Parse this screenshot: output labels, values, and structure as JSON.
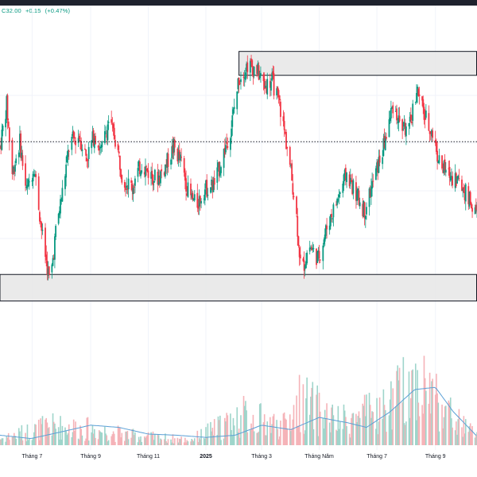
{
  "header": {
    "last_price": "C32.00",
    "change": "+0.15",
    "change_pct": "(+0.47%)"
  },
  "colors": {
    "up": "#089981",
    "down": "#f23645",
    "up_volume": "#9fd5cb",
    "down_volume": "#f5b3b8",
    "volume_ma": "#5a9fd6",
    "zone_fill": "#e6e6e6",
    "zone_stroke": "#131722",
    "grid": "#f0f3fa",
    "dotted_line": "#131722"
  },
  "chart_data": {
    "type": "candlestick",
    "x_ticks": [
      "Tháng 7",
      "Tháng 9",
      "Tháng 11",
      "2025",
      "Tháng 3",
      "Tháng Năm",
      "Tháng 7",
      "Tháng 9"
    ],
    "x_range": [
      "2024-05-28",
      "2025-10-15"
    ],
    "price_range": [
      0,
      100
    ],
    "volume_range": [
      0,
      100
    ],
    "annotations": {
      "resistance_zone": {
        "x_start": "2025-02-05",
        "x_end": "2025-10-15",
        "y_low": 89,
        "y_high": 98
      },
      "support_zone": {
        "x_start": "2024-05-28",
        "x_end": "2025-10-15",
        "y_low": 4,
        "y_high": 14
      },
      "horizontal_line": {
        "y": 64,
        "style": "dotted"
      }
    },
    "price_path": [
      [
        "2024-05-28",
        62
      ],
      [
        "2024-06-04",
        78
      ],
      [
        "2024-06-10",
        52
      ],
      [
        "2024-06-18",
        64
      ],
      [
        "2024-06-25",
        45
      ],
      [
        "2024-07-03",
        55
      ],
      [
        "2024-07-12",
        28
      ],
      [
        "2024-07-20",
        10
      ],
      [
        "2024-07-26",
        30
      ],
      [
        "2024-08-02",
        45
      ],
      [
        "2024-08-10",
        64
      ],
      [
        "2024-08-20",
        66
      ],
      [
        "2024-08-28",
        58
      ],
      [
        "2024-09-05",
        67
      ],
      [
        "2024-09-12",
        60
      ],
      [
        "2024-09-20",
        72
      ],
      [
        "2024-09-28",
        64
      ],
      [
        "2024-10-05",
        50
      ],
      [
        "2024-10-15",
        47
      ],
      [
        "2024-10-25",
        56
      ],
      [
        "2024-11-02",
        52
      ],
      [
        "2024-11-10",
        50
      ],
      [
        "2024-11-18",
        54
      ],
      [
        "2024-11-28",
        62
      ],
      [
        "2024-12-06",
        56
      ],
      [
        "2024-12-14",
        44
      ],
      [
        "2024-12-22",
        40
      ],
      [
        "2024-12-30",
        46
      ],
      [
        "2025-01-10",
        48
      ],
      [
        "2025-01-20",
        60
      ],
      [
        "2025-01-28",
        70
      ],
      [
        "2025-02-05",
        88
      ],
      [
        "2025-02-14",
        93
      ],
      [
        "2025-02-24",
        91
      ],
      [
        "2025-03-04",
        85
      ],
      [
        "2025-03-12",
        87
      ],
      [
        "2025-03-20",
        78
      ],
      [
        "2025-03-28",
        62
      ],
      [
        "2025-04-06",
        40
      ],
      [
        "2025-04-12",
        14
      ],
      [
        "2025-04-20",
        25
      ],
      [
        "2025-04-30",
        20
      ],
      [
        "2025-05-10",
        33
      ],
      [
        "2025-05-20",
        42
      ],
      [
        "2025-05-30",
        52
      ],
      [
        "2025-06-08",
        45
      ],
      [
        "2025-06-18",
        38
      ],
      [
        "2025-06-28",
        50
      ],
      [
        "2025-07-08",
        62
      ],
      [
        "2025-07-18",
        78
      ],
      [
        "2025-07-26",
        70
      ],
      [
        "2025-08-04",
        68
      ],
      [
        "2025-08-12",
        84
      ],
      [
        "2025-08-20",
        74
      ],
      [
        "2025-08-28",
        68
      ],
      [
        "2025-09-06",
        55
      ],
      [
        "2025-09-14",
        52
      ],
      [
        "2025-09-24",
        50
      ],
      [
        "2025-10-04",
        44
      ],
      [
        "2025-10-15",
        36
      ]
    ],
    "volume_ma_path": [
      [
        "2024-05-28",
        9
      ],
      [
        "2024-06-30",
        6
      ],
      [
        "2024-08-01",
        12
      ],
      [
        "2024-09-01",
        18
      ],
      [
        "2024-10-01",
        16
      ],
      [
        "2024-11-01",
        10
      ],
      [
        "2024-12-01",
        9
      ],
      [
        "2025-01-01",
        7
      ],
      [
        "2025-02-01",
        9
      ],
      [
        "2025-03-01",
        18
      ],
      [
        "2025-04-01",
        14
      ],
      [
        "2025-05-01",
        25
      ],
      [
        "2025-06-01",
        20
      ],
      [
        "2025-06-20",
        16
      ],
      [
        "2025-07-15",
        30
      ],
      [
        "2025-08-10",
        50
      ],
      [
        "2025-09-01",
        52
      ],
      [
        "2025-09-20",
        30
      ],
      [
        "2025-10-15",
        8
      ]
    ],
    "volume_peaks": [
      [
        "2024-05-28",
        10
      ],
      [
        "2024-07-20",
        30
      ],
      [
        "2024-09-01",
        25
      ],
      [
        "2024-10-15",
        15
      ],
      [
        "2024-12-15",
        8
      ],
      [
        "2025-02-10",
        45
      ],
      [
        "2025-03-25",
        30
      ],
      [
        "2025-04-12",
        70
      ],
      [
        "2025-05-20",
        35
      ],
      [
        "2025-07-10",
        55
      ],
      [
        "2025-08-08",
        100
      ],
      [
        "2025-08-28",
        85
      ],
      [
        "2025-09-20",
        40
      ],
      [
        "2025-10-15",
        15
      ]
    ]
  }
}
